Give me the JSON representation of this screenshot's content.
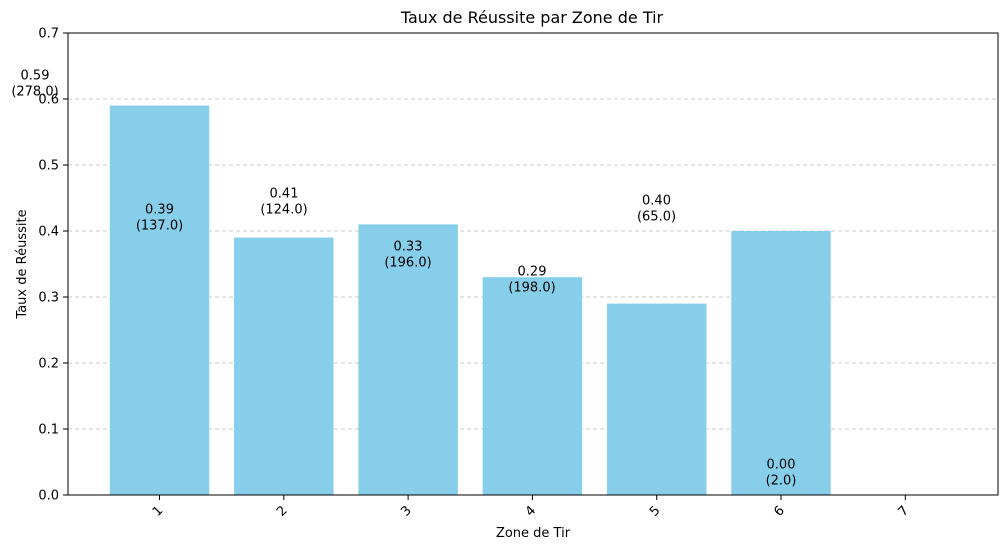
{
  "chart_data": {
    "type": "bar",
    "title": "Taux de Réussite par Zone de Tir",
    "xlabel": "Zone de Tir",
    "ylabel": "Taux de Réussite",
    "categories": [
      "1",
      "2",
      "3",
      "4",
      "5",
      "6",
      "7"
    ],
    "values": [
      0.59,
      0.39,
      0.41,
      0.33,
      0.29,
      0.4,
      0.0
    ],
    "counts": [
      278.0,
      137.0,
      124.0,
      196.0,
      198.0,
      65.0,
      2.0
    ],
    "data_labels": [
      [
        "0.59",
        "(278.0)"
      ],
      [
        "0.39",
        "(137.0)"
      ],
      [
        "0.41",
        "(124.0)"
      ],
      [
        "0.33",
        "(196.0)"
      ],
      [
        "0.29",
        "(198.0)"
      ],
      [
        "0.40",
        "(65.0)"
      ],
      [
        "0.00",
        "(2.0)"
      ]
    ],
    "ylim": [
      0,
      0.7
    ],
    "yticks": [
      0.0,
      0.1,
      0.2,
      0.3,
      0.4,
      0.5,
      0.6,
      0.7
    ],
    "ytick_labels": [
      "0.0",
      "0.1",
      "0.2",
      "0.3",
      "0.4",
      "0.5",
      "0.6",
      "0.7"
    ],
    "xtick_rotation_deg": 45,
    "grid": "horizontal dashed",
    "bar_color": "#87ceeb",
    "grid_color": "#c8c8c8"
  }
}
